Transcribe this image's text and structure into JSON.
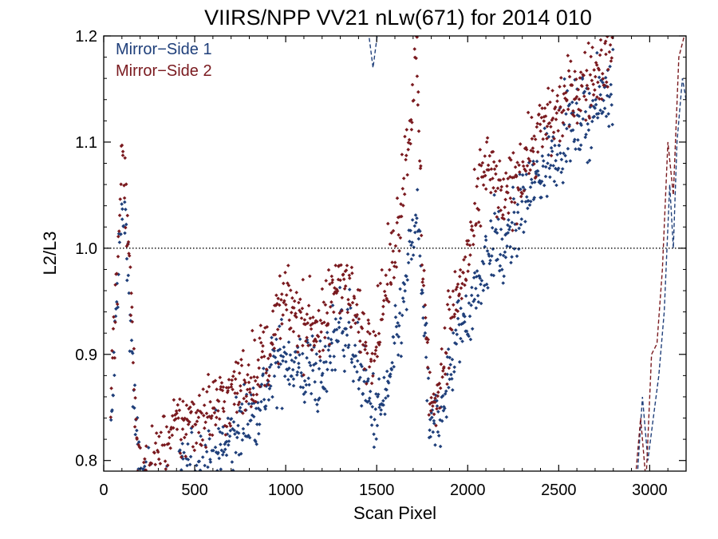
{
  "chart_data": {
    "type": "scatter",
    "title": "VIIRS/NPP VV21 nLw(671) for 2014 010",
    "xlabel": "Scan Pixel",
    "ylabel": "L2/L3",
    "xlim": [
      0,
      3200
    ],
    "ylim": [
      0.79,
      1.2
    ],
    "xticks": [
      0,
      500,
      1000,
      1500,
      2000,
      2500,
      3000
    ],
    "yticks": [
      0.8,
      0.9,
      1.0,
      1.1,
      1.2
    ],
    "xtick_labels": [
      "0",
      "500",
      "1000",
      "1500",
      "2000",
      "2500",
      "3000"
    ],
    "ytick_labels": [
      "0.8",
      "0.9",
      "1.0",
      "1.1",
      "1.2"
    ],
    "reference_line": {
      "y": 1.0,
      "style": "dotted",
      "color": "#000000"
    },
    "legend_position": "top-left",
    "series": [
      {
        "name": "Mirror−Side 1",
        "color": "#1f3f7a",
        "curve": [
          [
            0,
            0.78
          ],
          [
            40,
            0.82
          ],
          [
            80,
            0.98
          ],
          [
            100,
            1.03
          ],
          [
            120,
            1.02
          ],
          [
            140,
            0.96
          ],
          [
            160,
            0.88
          ],
          [
            180,
            0.82
          ],
          [
            200,
            0.78
          ],
          [
            300,
            0.76
          ],
          [
            400,
            0.78
          ],
          [
            500,
            0.79
          ],
          [
            600,
            0.8
          ],
          [
            700,
            0.82
          ],
          [
            800,
            0.84
          ],
          [
            900,
            0.87
          ],
          [
            950,
            0.89
          ],
          [
            1000,
            0.9
          ],
          [
            1050,
            0.89
          ],
          [
            1100,
            0.88
          ],
          [
            1150,
            0.89
          ],
          [
            1200,
            0.87
          ],
          [
            1250,
            0.91
          ],
          [
            1300,
            0.93
          ],
          [
            1350,
            0.92
          ],
          [
            1400,
            0.89
          ],
          [
            1450,
            0.86
          ],
          [
            1500,
            0.84
          ],
          [
            1550,
            0.86
          ],
          [
            1600,
            0.9
          ],
          [
            1650,
            0.95
          ],
          [
            1700,
            1.01
          ],
          [
            1720,
            1.03
          ],
          [
            1750,
            0.97
          ],
          [
            1780,
            0.86
          ],
          [
            1800,
            0.82
          ],
          [
            1850,
            0.85
          ],
          [
            1900,
            0.88
          ],
          [
            1950,
            0.92
          ],
          [
            2000,
            0.94
          ],
          [
            2050,
            0.96
          ],
          [
            2100,
            0.99
          ],
          [
            2150,
            1.01
          ],
          [
            2200,
            0.99
          ],
          [
            2250,
            1.02
          ],
          [
            2300,
            1.04
          ],
          [
            2400,
            1.07
          ],
          [
            2500,
            1.1
          ],
          [
            2600,
            1.12
          ],
          [
            2700,
            1.13
          ],
          [
            2800,
            1.16
          ]
        ],
        "dashed_segments": [
          [
            [
              1450,
              1.21
            ],
            [
              1480,
              1.17
            ],
            [
              1510,
              1.21
            ]
          ],
          [
            [
              2930,
              0.78
            ],
            [
              2960,
              0.86
            ],
            [
              2990,
              0.8
            ],
            [
              3020,
              0.84
            ],
            [
              3050,
              0.88
            ],
            [
              3080,
              0.94
            ],
            [
              3110,
              1.06
            ],
            [
              3130,
              1.0
            ],
            [
              3150,
              1.1
            ],
            [
              3180,
              1.16
            ],
            [
              3200,
              1.14
            ]
          ]
        ]
      },
      {
        "name": "Mirror−Side 2",
        "color": "#7a1a1f",
        "curve": [
          [
            0,
            0.8
          ],
          [
            40,
            0.86
          ],
          [
            80,
            1.0
          ],
          [
            100,
            1.1
          ],
          [
            120,
            1.05
          ],
          [
            140,
            1.0
          ],
          [
            160,
            0.9
          ],
          [
            180,
            0.82
          ],
          [
            200,
            0.78
          ],
          [
            300,
            0.8
          ],
          [
            400,
            0.83
          ],
          [
            500,
            0.84
          ],
          [
            600,
            0.85
          ],
          [
            700,
            0.86
          ],
          [
            800,
            0.88
          ],
          [
            900,
            0.9
          ],
          [
            950,
            0.93
          ],
          [
            1000,
            0.95
          ],
          [
            1050,
            0.94
          ],
          [
            1100,
            0.93
          ],
          [
            1150,
            0.93
          ],
          [
            1200,
            0.92
          ],
          [
            1250,
            0.95
          ],
          [
            1300,
            0.98
          ],
          [
            1350,
            0.96
          ],
          [
            1400,
            0.93
          ],
          [
            1450,
            0.91
          ],
          [
            1500,
            0.92
          ],
          [
            1550,
            0.96
          ],
          [
            1600,
            1.0
          ],
          [
            1650,
            1.07
          ],
          [
            1700,
            1.15
          ],
          [
            1720,
            1.18
          ],
          [
            1750,
            1.0
          ],
          [
            1780,
            0.9
          ],
          [
            1800,
            0.84
          ],
          [
            1850,
            0.88
          ],
          [
            1900,
            0.93
          ],
          [
            1950,
            0.96
          ],
          [
            2000,
            0.99
          ],
          [
            2050,
            1.03
          ],
          [
            2100,
            1.08
          ],
          [
            2150,
            1.06
          ],
          [
            2200,
            1.04
          ],
          [
            2250,
            1.06
          ],
          [
            2300,
            1.08
          ],
          [
            2400,
            1.11
          ],
          [
            2500,
            1.13
          ],
          [
            2600,
            1.15
          ],
          [
            2700,
            1.16
          ],
          [
            2800,
            1.19
          ]
        ],
        "dashed_segments": [
          [
            [
              2920,
              0.78
            ],
            [
              2950,
              0.84
            ],
            [
              2980,
              0.78
            ],
            [
              3010,
              0.9
            ],
            [
              3040,
              0.91
            ],
            [
              3070,
              0.98
            ],
            [
              3100,
              1.1
            ],
            [
              3130,
              1.05
            ],
            [
              3160,
              1.18
            ],
            [
              3190,
              1.2
            ]
          ]
        ]
      }
    ]
  }
}
